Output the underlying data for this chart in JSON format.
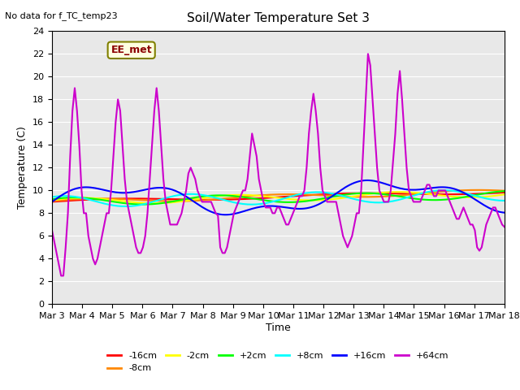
{
  "title": "Soil/Water Temperature Set 3",
  "xlabel": "Time",
  "ylabel": "Temperature (C)",
  "note": "No data for f_TC_temp23",
  "legend_label": "EE_met",
  "ylim": [
    0,
    24
  ],
  "yticks": [
    0,
    2,
    4,
    6,
    8,
    10,
    12,
    14,
    16,
    18,
    20,
    22,
    24
  ],
  "xtick_labels": [
    "Mar 3",
    "Mar 4",
    "Mar 5",
    "Mar 6",
    "Mar 7",
    "Mar 8",
    "Mar 9",
    "Mar 10",
    "Mar 11",
    "Mar 12",
    "Mar 13",
    "Mar 14",
    "Mar 15",
    "Mar 16",
    "Mar 17",
    "Mar 18"
  ],
  "series_labels": [
    "-16cm",
    "-8cm",
    "-2cm",
    "+2cm",
    "+8cm",
    "+16cm",
    "+64cm"
  ],
  "series_colors": [
    "#ff0000",
    "#ff8800",
    "#ffff00",
    "#00ff00",
    "#00ffff",
    "#0000ff",
    "#cc00cc"
  ],
  "background_color": "#e8e8e8"
}
